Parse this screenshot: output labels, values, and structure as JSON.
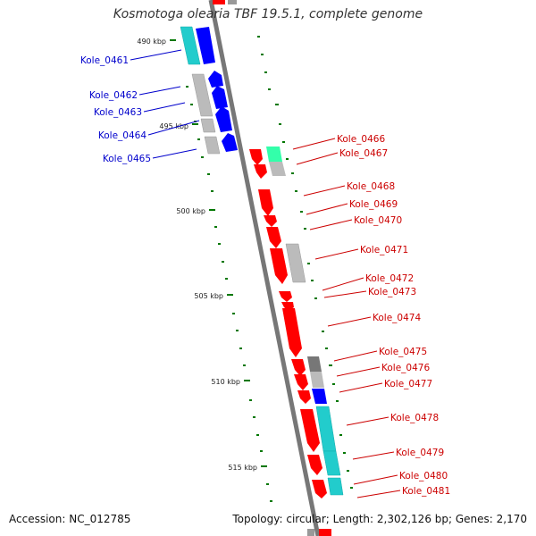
{
  "title": "Kosmotoga olearia TBF 19.5.1, complete genome",
  "accession": "Accession: NC_012785",
  "stats": "Topology: circular; Length: 2,302,126 bp; Genes: 2,170",
  "colors": {
    "backbone": "#8a8a8a",
    "forward_label": "#0000cc",
    "reverse_label": "#cc0000",
    "cds_reverse": "#ff0000",
    "cds_forward": "#0000ff",
    "cog_cyan": "#22cccc",
    "cog_gray": "#bbbbbb",
    "cog_teal": "#33ffaa",
    "tick": "#007700"
  },
  "scale_marks": [
    "490 kbp",
    "495 kbp",
    "500 kbp",
    "505 kbp",
    "510 kbp",
    "515 kbp"
  ],
  "genes": [
    {
      "label": "Kole_0461",
      "strand": "forward"
    },
    {
      "label": "Kole_0462",
      "strand": "forward"
    },
    {
      "label": "Kole_0463",
      "strand": "forward"
    },
    {
      "label": "Kole_0464",
      "strand": "forward"
    },
    {
      "label": "Kole_0465",
      "strand": "forward"
    },
    {
      "label": "Kole_0466",
      "strand": "reverse"
    },
    {
      "label": "Kole_0467",
      "strand": "reverse"
    },
    {
      "label": "Kole_0468",
      "strand": "reverse"
    },
    {
      "label": "Kole_0469",
      "strand": "reverse"
    },
    {
      "label": "Kole_0470",
      "strand": "reverse"
    },
    {
      "label": "Kole_0471",
      "strand": "reverse"
    },
    {
      "label": "Kole_0472",
      "strand": "reverse"
    },
    {
      "label": "Kole_0473",
      "strand": "reverse"
    },
    {
      "label": "Kole_0474",
      "strand": "reverse"
    },
    {
      "label": "Kole_0475",
      "strand": "reverse"
    },
    {
      "label": "Kole_0476",
      "strand": "reverse"
    },
    {
      "label": "Kole_0477",
      "strand": "reverse"
    },
    {
      "label": "Kole_0478",
      "strand": "reverse"
    },
    {
      "label": "Kole_0479",
      "strand": "reverse"
    },
    {
      "label": "Kole_0480",
      "strand": "reverse"
    },
    {
      "label": "Kole_0481",
      "strand": "reverse"
    }
  ]
}
